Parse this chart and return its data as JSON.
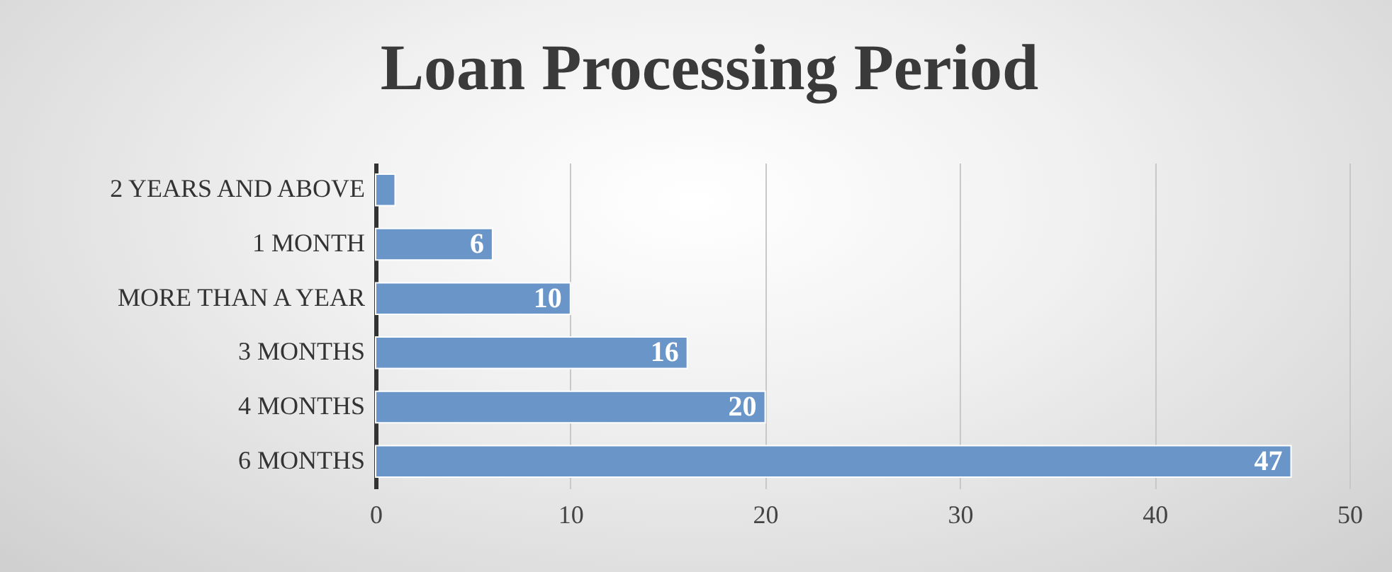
{
  "chart_data": {
    "type": "bar",
    "orientation": "horizontal",
    "title": "Loan Processing Period",
    "categories": [
      "2 YEARS AND ABOVE",
      "1 MONTH",
      "MORE THAN A YEAR",
      "3 MONTHS",
      "4 MONTHS",
      "6 MONTHS"
    ],
    "values": [
      1,
      6,
      10,
      16,
      20,
      47
    ],
    "value_labels": [
      null,
      "6",
      "10",
      "16",
      "20",
      "47"
    ],
    "color": "#6a95c8",
    "xlim": [
      0,
      50
    ],
    "xticks": [
      0,
      10,
      20,
      30,
      40,
      50
    ],
    "grid": "x"
  }
}
